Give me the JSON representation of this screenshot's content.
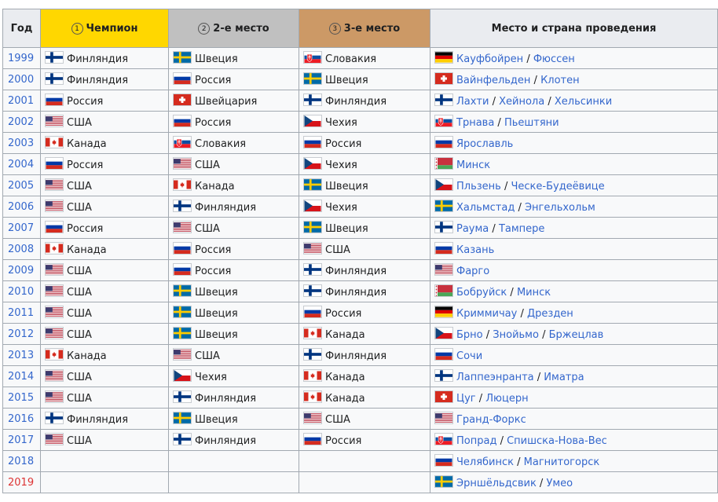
{
  "headers": {
    "year": "Год",
    "champion": "Чемпион",
    "second": "2-е место",
    "third": "3-е место",
    "venue": "Место и страна проведения",
    "medal1": "1",
    "medal2": "2",
    "medal3": "3"
  },
  "colors": {
    "gold": "#ffd700",
    "silver": "#c0c0c0",
    "bronze": "#cc9966",
    "link": "#3366cc",
    "red_link": "#d33"
  },
  "rows": [
    {
      "year": "1999",
      "c1": {
        "flag": "fin",
        "name": "Финляндия"
      },
      "c2": {
        "flag": "swe",
        "name": "Швеция"
      },
      "c3": {
        "flag": "svk",
        "name": "Словакия"
      },
      "venue_flag": "ger",
      "venue": [
        "Кауфбойрен",
        "Фюссен"
      ]
    },
    {
      "year": "2000",
      "c1": {
        "flag": "fin",
        "name": "Финляндия"
      },
      "c2": {
        "flag": "rus",
        "name": "Россия"
      },
      "c3": {
        "flag": "swe",
        "name": "Швеция"
      },
      "venue_flag": "sui",
      "venue": [
        "Вайнфельден",
        "Клотен"
      ]
    },
    {
      "year": "2001",
      "c1": {
        "flag": "rus",
        "name": "Россия"
      },
      "c2": {
        "flag": "sui",
        "name": "Швейцария"
      },
      "c3": {
        "flag": "fin",
        "name": "Финляндия"
      },
      "venue_flag": "fin",
      "venue": [
        "Лахти",
        "Хейнола",
        "Хельсинки"
      ]
    },
    {
      "year": "2002",
      "c1": {
        "flag": "usa",
        "name": "США"
      },
      "c2": {
        "flag": "rus",
        "name": "Россия"
      },
      "c3": {
        "flag": "cze",
        "name": "Чехия"
      },
      "venue_flag": "svk",
      "venue": [
        "Трнава",
        "Пьештяни"
      ]
    },
    {
      "year": "2003",
      "c1": {
        "flag": "can",
        "name": "Канада"
      },
      "c2": {
        "flag": "svk",
        "name": "Словакия"
      },
      "c3": {
        "flag": "rus",
        "name": "Россия"
      },
      "venue_flag": "rus",
      "venue": [
        "Ярославль"
      ]
    },
    {
      "year": "2004",
      "c1": {
        "flag": "rus",
        "name": "Россия"
      },
      "c2": {
        "flag": "usa",
        "name": "США"
      },
      "c3": {
        "flag": "cze",
        "name": "Чехия"
      },
      "venue_flag": "blr",
      "venue": [
        "Минск"
      ]
    },
    {
      "year": "2005",
      "c1": {
        "flag": "usa",
        "name": "США"
      },
      "c2": {
        "flag": "can",
        "name": "Канада"
      },
      "c3": {
        "flag": "swe",
        "name": "Швеция"
      },
      "venue_flag": "cze",
      "venue": [
        "Пльзень",
        "Ческе-Будеёвице"
      ]
    },
    {
      "year": "2006",
      "c1": {
        "flag": "usa",
        "name": "США"
      },
      "c2": {
        "flag": "fin",
        "name": "Финляндия"
      },
      "c3": {
        "flag": "cze",
        "name": "Чехия"
      },
      "venue_flag": "swe",
      "venue": [
        "Хальмстад",
        "Энгельхольм"
      ]
    },
    {
      "year": "2007",
      "c1": {
        "flag": "rus",
        "name": "Россия"
      },
      "c2": {
        "flag": "usa",
        "name": "США"
      },
      "c3": {
        "flag": "swe",
        "name": "Швеция"
      },
      "venue_flag": "fin",
      "venue": [
        "Раума",
        "Тампере"
      ]
    },
    {
      "year": "2008",
      "c1": {
        "flag": "can",
        "name": "Канада"
      },
      "c2": {
        "flag": "rus",
        "name": "Россия"
      },
      "c3": {
        "flag": "usa",
        "name": "США"
      },
      "venue_flag": "rus",
      "venue": [
        "Казань"
      ]
    },
    {
      "year": "2009",
      "c1": {
        "flag": "usa",
        "name": "США"
      },
      "c2": {
        "flag": "rus",
        "name": "Россия"
      },
      "c3": {
        "flag": "fin",
        "name": "Финляндия"
      },
      "venue_flag": "usa",
      "venue": [
        "Фарго"
      ]
    },
    {
      "year": "2010",
      "c1": {
        "flag": "usa",
        "name": "США"
      },
      "c2": {
        "flag": "swe",
        "name": "Швеция"
      },
      "c3": {
        "flag": "fin",
        "name": "Финляндия"
      },
      "venue_flag": "blr",
      "venue": [
        "Бобруйск",
        "Минск"
      ]
    },
    {
      "year": "2011",
      "c1": {
        "flag": "usa",
        "name": "США"
      },
      "c2": {
        "flag": "swe",
        "name": "Швеция"
      },
      "c3": {
        "flag": "rus",
        "name": "Россия"
      },
      "venue_flag": "ger",
      "venue": [
        "Криммичау",
        "Дрезден"
      ]
    },
    {
      "year": "2012",
      "c1": {
        "flag": "usa",
        "name": "США"
      },
      "c2": {
        "flag": "swe",
        "name": "Швеция"
      },
      "c3": {
        "flag": "can",
        "name": "Канада"
      },
      "venue_flag": "cze",
      "venue": [
        "Брно",
        "Знойьмо",
        "Бржецлав"
      ]
    },
    {
      "year": "2013",
      "c1": {
        "flag": "can",
        "name": "Канада"
      },
      "c2": {
        "flag": "usa",
        "name": "США"
      },
      "c3": {
        "flag": "fin",
        "name": "Финляндия"
      },
      "venue_flag": "rus",
      "venue": [
        "Сочи"
      ]
    },
    {
      "year": "2014",
      "c1": {
        "flag": "usa",
        "name": "США"
      },
      "c2": {
        "flag": "cze",
        "name": "Чехия"
      },
      "c3": {
        "flag": "can",
        "name": "Канада"
      },
      "venue_flag": "fin",
      "venue": [
        "Лаппеэнранта",
        "Иматра"
      ]
    },
    {
      "year": "2015",
      "c1": {
        "flag": "usa",
        "name": "США"
      },
      "c2": {
        "flag": "fin",
        "name": "Финляндия"
      },
      "c3": {
        "flag": "can",
        "name": "Канада"
      },
      "venue_flag": "sui",
      "venue": [
        "Цуг",
        "Люцерн"
      ]
    },
    {
      "year": "2016",
      "c1": {
        "flag": "fin",
        "name": "Финляндия"
      },
      "c2": {
        "flag": "swe",
        "name": "Швеция"
      },
      "c3": {
        "flag": "usa",
        "name": "США"
      },
      "venue_flag": "usa",
      "venue": [
        "Гранд-Форкс"
      ]
    },
    {
      "year": "2017",
      "c1": {
        "flag": "usa",
        "name": "США"
      },
      "c2": {
        "flag": "fin",
        "name": "Финляндия"
      },
      "c3": {
        "flag": "rus",
        "name": "Россия"
      },
      "venue_flag": "svk",
      "venue": [
        "Попрад",
        "Спишска-Нова-Вес"
      ]
    },
    {
      "year": "2018",
      "c1": null,
      "c2": null,
      "c3": null,
      "venue_flag": "rus",
      "venue": [
        "Челябинск",
        "Магнитогорск"
      ]
    },
    {
      "year": "2019",
      "year_red": true,
      "c1": null,
      "c2": null,
      "c3": null,
      "venue_flag": "swe",
      "venue": [
        "Эрншёльдсвик",
        "Умео"
      ]
    }
  ]
}
